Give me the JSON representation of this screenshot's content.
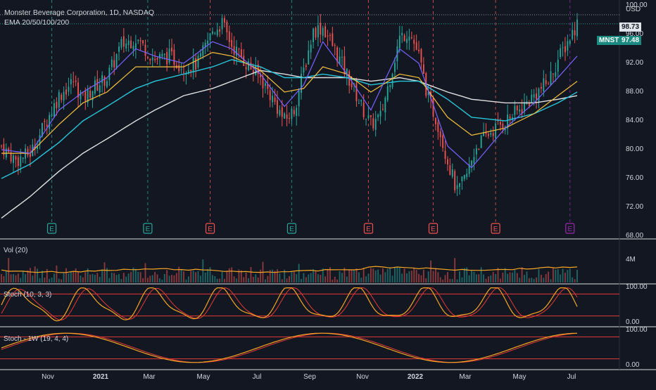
{
  "header": {
    "title": "Monster Beverage Corporation, 1D, NASDAQ",
    "subtitle": "EMA 20/50/100/200",
    "currency": "USD"
  },
  "price_tags": {
    "high": "98.73",
    "symbol": "MNST",
    "last": "97.48"
  },
  "panels": {
    "volume": "Vol (20)",
    "volume_tick": "4M",
    "stoch": "Stoch (10, 3, 3)",
    "stoch_weekly": "Stoch - 1W (19, 4, 4)",
    "stoch_top": "100.00",
    "stoch_bottom": "0.00"
  },
  "colors": {
    "background": "#131722",
    "up": "#26a69a",
    "down": "#ef5350",
    "ema20": "#7b61ff",
    "ema50": "#f5c03b",
    "ema100": "#26c6da",
    "ema200": "#e0e0e0",
    "stoch_k": "#f5a623",
    "stoch_d": "#e53935",
    "earnings_past": "#26a69a",
    "earnings_down": "#ef5350",
    "earnings_future": "#9c27b0"
  },
  "chart_data": {
    "type": "candlestick",
    "title": "Monster Beverage Corporation, 1D, NASDAQ",
    "indicators": [
      "EMA 20",
      "EMA 50",
      "EMA 100",
      "EMA 200"
    ],
    "y_ticks": [
      "100.00",
      "96.00",
      "92.00",
      "88.00",
      "84.00",
      "80.00",
      "76.00",
      "72.00",
      "68.00"
    ],
    "ylim": [
      68,
      100
    ],
    "x_ticks": [
      {
        "label": "Nov",
        "bold": false
      },
      {
        "label": "2021",
        "bold": true
      },
      {
        "label": "Mar",
        "bold": false
      },
      {
        "label": "May",
        "bold": false
      },
      {
        "label": "Jul",
        "bold": false
      },
      {
        "label": "Sep",
        "bold": false
      },
      {
        "label": "Nov",
        "bold": false
      },
      {
        "label": "2022",
        "bold": true
      },
      {
        "label": "Mar",
        "bold": false
      },
      {
        "label": "May",
        "bold": false
      },
      {
        "label": "Jul",
        "bold": false
      }
    ],
    "close_path": [
      [
        0,
        80.5
      ],
      [
        6,
        78.5
      ],
      [
        12,
        79.5
      ],
      [
        18,
        83.5
      ],
      [
        24,
        87.5
      ],
      [
        30,
        89.5
      ],
      [
        34,
        87.0
      ],
      [
        38,
        88.5
      ],
      [
        44,
        90.0
      ],
      [
        50,
        94.5
      ],
      [
        56,
        95.5
      ],
      [
        60,
        94.0
      ],
      [
        64,
        92.5
      ],
      [
        70,
        93.0
      ],
      [
        76,
        91.5
      ],
      [
        82,
        92.0
      ],
      [
        88,
        96.5
      ],
      [
        92,
        97.5
      ],
      [
        96,
        94.5
      ],
      [
        102,
        92.0
      ],
      [
        108,
        90.0
      ],
      [
        114,
        86.5
      ],
      [
        118,
        84.0
      ],
      [
        122,
        85.5
      ],
      [
        126,
        91.0
      ],
      [
        130,
        96.5
      ],
      [
        134,
        97.0
      ],
      [
        138,
        94.5
      ],
      [
        144,
        90.5
      ],
      [
        150,
        86.0
      ],
      [
        154,
        83.5
      ],
      [
        158,
        84.5
      ],
      [
        162,
        90.0
      ],
      [
        166,
        95.5
      ],
      [
        170,
        96.5
      ],
      [
        174,
        93.0
      ],
      [
        178,
        87.0
      ],
      [
        182,
        83.5
      ],
      [
        186,
        78.5
      ],
      [
        190,
        74.0
      ],
      [
        194,
        76.5
      ],
      [
        198,
        80.5
      ],
      [
        204,
        82.5
      ],
      [
        210,
        84.0
      ],
      [
        216,
        85.5
      ],
      [
        222,
        87.5
      ],
      [
        228,
        89.5
      ],
      [
        232,
        92.5
      ],
      [
        236,
        95.0
      ],
      [
        240,
        97.5
      ]
    ],
    "ema20": [
      [
        0,
        80.0
      ],
      [
        12,
        79.5
      ],
      [
        24,
        85.5
      ],
      [
        34,
        88.0
      ],
      [
        44,
        90.0
      ],
      [
        56,
        94.0
      ],
      [
        64,
        93.0
      ],
      [
        76,
        92.0
      ],
      [
        88,
        95.0
      ],
      [
        96,
        94.0
      ],
      [
        108,
        90.5
      ],
      [
        118,
        86.0
      ],
      [
        126,
        89.0
      ],
      [
        134,
        95.0
      ],
      [
        144,
        90.5
      ],
      [
        154,
        85.5
      ],
      [
        166,
        94.0
      ],
      [
        174,
        92.0
      ],
      [
        186,
        80.5
      ],
      [
        196,
        77.5
      ],
      [
        210,
        83.0
      ],
      [
        222,
        86.5
      ],
      [
        232,
        90.0
      ],
      [
        240,
        93.0
      ]
    ],
    "ema50": [
      [
        0,
        79.5
      ],
      [
        12,
        79.5
      ],
      [
        24,
        83.5
      ],
      [
        34,
        86.5
      ],
      [
        44,
        88.0
      ],
      [
        56,
        91.5
      ],
      [
        64,
        91.5
      ],
      [
        76,
        91.5
      ],
      [
        88,
        93.5
      ],
      [
        96,
        93.0
      ],
      [
        108,
        91.0
      ],
      [
        118,
        88.0
      ],
      [
        126,
        88.5
      ],
      [
        134,
        91.5
      ],
      [
        144,
        90.5
      ],
      [
        154,
        88.0
      ],
      [
        166,
        90.5
      ],
      [
        174,
        90.0
      ],
      [
        186,
        84.5
      ],
      [
        196,
        82.0
      ],
      [
        210,
        83.0
      ],
      [
        222,
        85.0
      ],
      [
        232,
        87.5
      ],
      [
        240,
        89.5
      ]
    ],
    "ema100": [
      [
        0,
        76.0
      ],
      [
        12,
        78.0
      ],
      [
        24,
        81.0
      ],
      [
        34,
        84.0
      ],
      [
        44,
        86.0
      ],
      [
        56,
        88.5
      ],
      [
        64,
        89.5
      ],
      [
        76,
        90.5
      ],
      [
        88,
        91.5
      ],
      [
        96,
        92.5
      ],
      [
        108,
        91.5
      ],
      [
        118,
        90.0
      ],
      [
        126,
        90.0
      ],
      [
        134,
        90.5
      ],
      [
        144,
        90.0
      ],
      [
        154,
        89.0
      ],
      [
        166,
        89.5
      ],
      [
        174,
        89.5
      ],
      [
        186,
        87.0
      ],
      [
        196,
        84.5
      ],
      [
        210,
        84.0
      ],
      [
        222,
        85.0
      ],
      [
        232,
        86.5
      ],
      [
        240,
        88.0
      ]
    ],
    "ema200": [
      [
        0,
        70.5
      ],
      [
        12,
        73.5
      ],
      [
        24,
        77.0
      ],
      [
        34,
        79.5
      ],
      [
        44,
        81.5
      ],
      [
        56,
        84.0
      ],
      [
        64,
        85.5
      ],
      [
        76,
        87.5
      ],
      [
        88,
        88.5
      ],
      [
        96,
        89.5
      ],
      [
        108,
        91.0
      ],
      [
        118,
        90.5
      ],
      [
        126,
        90.0
      ],
      [
        134,
        90.0
      ],
      [
        144,
        90.0
      ],
      [
        154,
        89.5
      ],
      [
        166,
        90.0
      ],
      [
        174,
        89.5
      ],
      [
        186,
        88.0
      ],
      [
        196,
        87.0
      ],
      [
        210,
        86.5
      ],
      [
        222,
        86.5
      ],
      [
        232,
        87.0
      ],
      [
        240,
        87.5
      ]
    ],
    "earnings": [
      {
        "x": 21,
        "label": "E",
        "type": "past"
      },
      {
        "x": 61,
        "label": "E",
        "type": "past"
      },
      {
        "x": 87,
        "label": "E",
        "type": "down"
      },
      {
        "x": 121,
        "label": "E",
        "type": "past"
      },
      {
        "x": 153,
        "label": "E",
        "type": "down"
      },
      {
        "x": 180,
        "label": "E",
        "type": "down"
      },
      {
        "x": 206,
        "label": "E",
        "type": "down"
      },
      {
        "x": 237,
        "label": "E",
        "type": "future"
      }
    ],
    "stoch_levels": [
      80,
      20
    ],
    "stoch_weekly_levels": [
      80,
      20
    ],
    "resistance_level": 98.73,
    "last_price": 97.48
  }
}
